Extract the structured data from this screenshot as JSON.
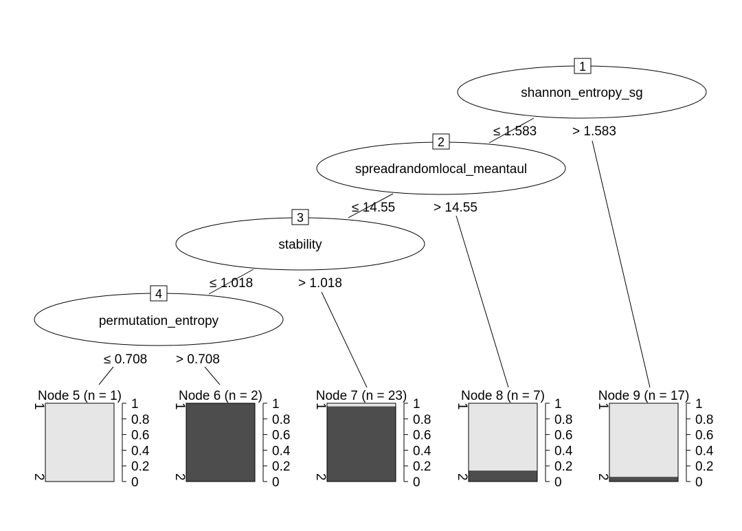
{
  "tree": {
    "inner_nodes": [
      {
        "id": "1",
        "variable": "shannon_entropy_sg",
        "split_left": "≤ 1.583",
        "split_right": "> 1.583"
      },
      {
        "id": "2",
        "variable": "spreadrandomlocal_meantaul",
        "split_left": "≤ 14.55",
        "split_right": "> 14.55"
      },
      {
        "id": "3",
        "variable": "stability",
        "split_left": "≤ 1.018",
        "split_right": "> 1.018"
      },
      {
        "id": "4",
        "variable": "permutation_entropy",
        "split_left": "≤ 0.708",
        "split_right": "> 0.708"
      }
    ],
    "terminal_nodes": [
      {
        "title": "Node 5 (n = 1)",
        "class2_fraction": 0.0,
        "class1_fraction": 1.0
      },
      {
        "title": "Node 6 (n = 2)",
        "class2_fraction": 1.0,
        "class1_fraction": 0.0
      },
      {
        "title": "Node 7 (n = 23)",
        "class2_fraction": 0.96,
        "class1_fraction": 0.04
      },
      {
        "title": "Node 8 (n = 7)",
        "class2_fraction": 0.14,
        "class1_fraction": 0.86
      },
      {
        "title": "Node 9 (n = 17)",
        "class2_fraction": 0.06,
        "class1_fraction": 0.94
      }
    ],
    "class_labels": [
      "1",
      "2"
    ],
    "y_ticks": [
      "1",
      "0.8",
      "0.6",
      "0.4",
      "0.2",
      "0"
    ],
    "colors": {
      "class1": "#e6e6e6",
      "class2": "#4d4d4d",
      "line": "#000000"
    }
  }
}
